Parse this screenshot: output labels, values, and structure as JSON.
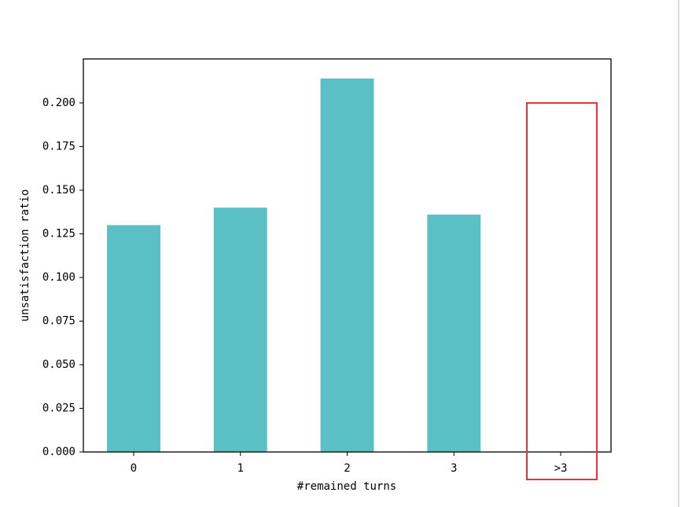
{
  "chart_data": {
    "type": "bar",
    "x_label": "#remained turns",
    "y_label": "unsatisfaction ratio",
    "categories": [
      "0",
      "1",
      "2",
      "3",
      ">3"
    ],
    "values": [
      0.13,
      0.14,
      0.214,
      0.136,
      0
    ],
    "color": "#5bc0c6",
    "ylim": [
      0,
      0.2252
    ],
    "yticks": [
      {
        "value": 0,
        "label": "0.000"
      },
      {
        "value": 0.025,
        "label": "0.025"
      },
      {
        "value": 0.05,
        "label": "0.050"
      },
      {
        "value": 0.075,
        "label": "0.075"
      },
      {
        "value": 0.1,
        "label": "0.100"
      },
      {
        "value": 0.125,
        "label": "0.125"
      },
      {
        "value": 0.15,
        "label": "0.150"
      },
      {
        "value": 0.175,
        "label": "0.175"
      },
      {
        "value": 0.2,
        "label": "0.200"
      }
    ],
    "grid": false
  }
}
